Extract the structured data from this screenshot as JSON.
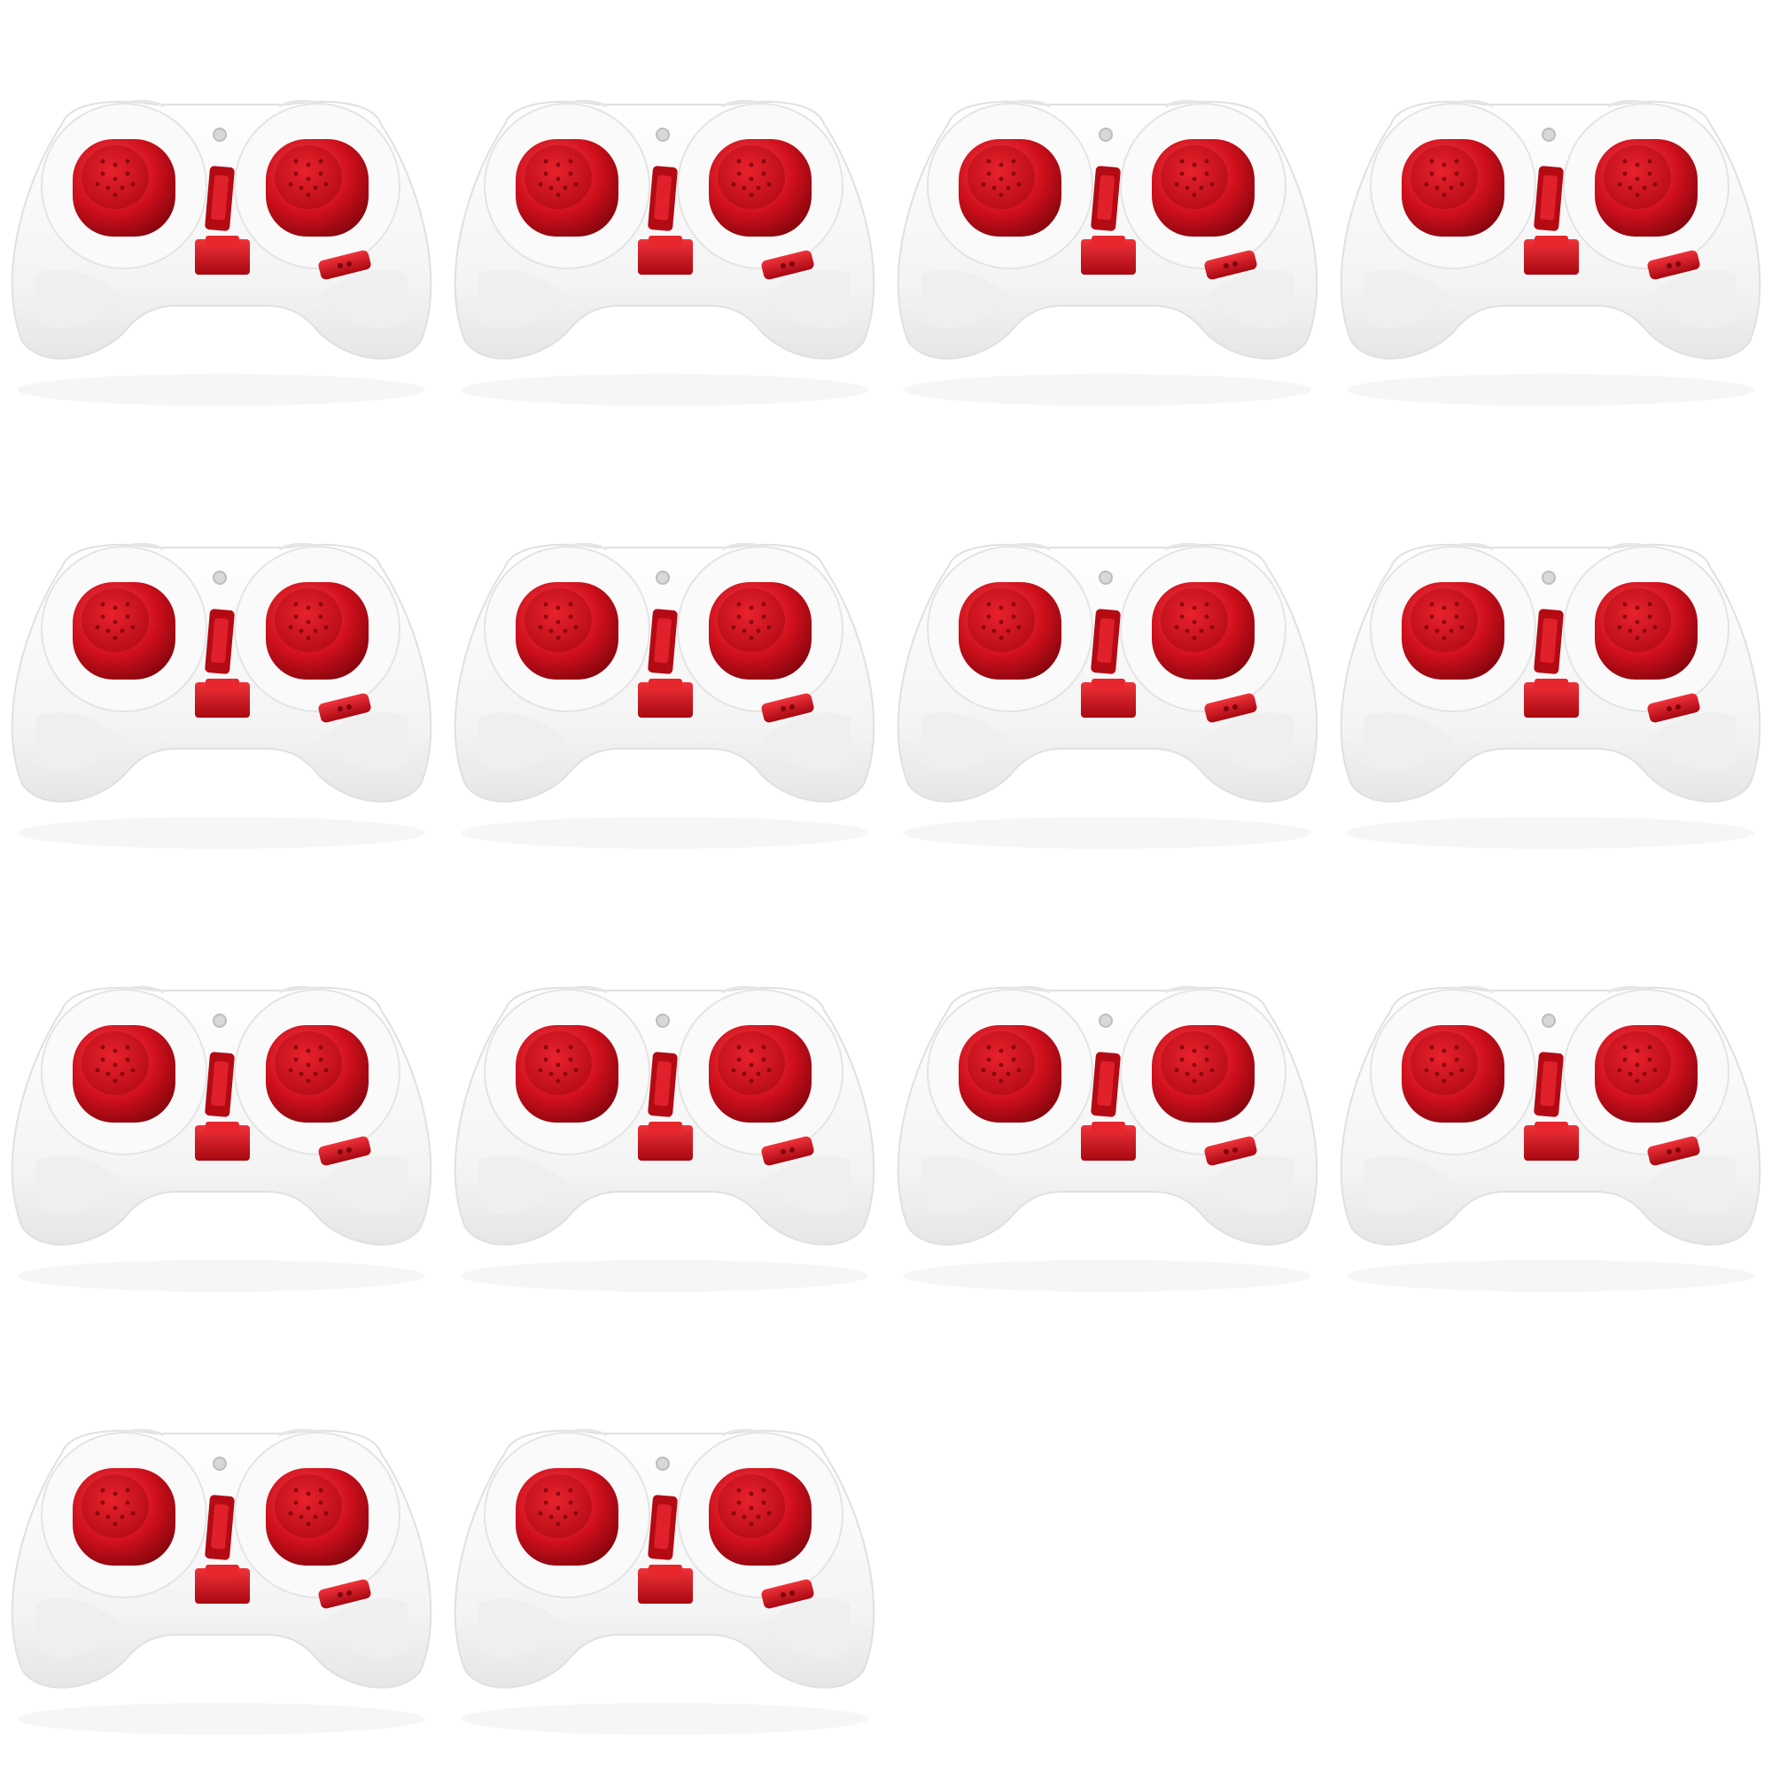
{
  "image": {
    "background_color": "#ffffff",
    "subject": "remote-controller",
    "item_count": 14,
    "columns": 4,
    "rows_used": 4,
    "colors": {
      "body": "#f7f7f7",
      "body_shade": "#e2e2e2",
      "stick": "#d0101c",
      "stick_dark": "#8e0610",
      "stick_highlight": "#ff5a60"
    }
  }
}
